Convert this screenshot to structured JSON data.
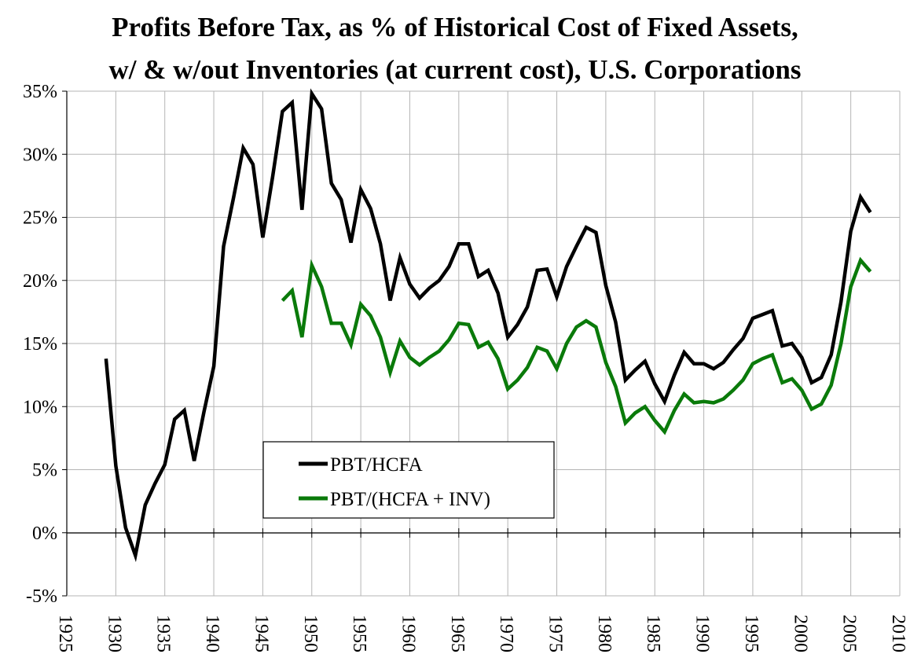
{
  "chart_data": {
    "type": "line",
    "title": "Profits Before Tax, as % of Historical Cost of Fixed Assets,",
    "subtitle": "w/ & w/out Inventories (at current cost), U.S. Corporations",
    "xlim": [
      1925,
      2010
    ],
    "ylim": [
      -5,
      35
    ],
    "x_ticks": [
      "1925",
      "1930",
      "1935",
      "1940",
      "1945",
      "1950",
      "1955",
      "1960",
      "1965",
      "1970",
      "1975",
      "1980",
      "1985",
      "1990",
      "1995",
      "2000",
      "2005",
      "2010"
    ],
    "y_ticks": [
      "-5%",
      "0%",
      "5%",
      "10%",
      "15%",
      "20%",
      "25%",
      "30%",
      "35%"
    ],
    "grid": true,
    "legend_position": "lower-center",
    "series": [
      {
        "name": "PBT/HCFA",
        "color": "#000000",
        "points": [
          [
            1929,
            13.8
          ],
          [
            1930,
            5.3
          ],
          [
            1931,
            0.4
          ],
          [
            1932,
            -1.8
          ],
          [
            1933,
            2.2
          ],
          [
            1934,
            3.9
          ],
          [
            1935,
            5.4
          ],
          [
            1936,
            9.0
          ],
          [
            1937,
            9.7
          ],
          [
            1938,
            5.7
          ],
          [
            1939,
            9.6
          ],
          [
            1940,
            13.2
          ],
          [
            1941,
            22.7
          ],
          [
            1942,
            26.5
          ],
          [
            1943,
            30.5
          ],
          [
            1944,
            29.2
          ],
          [
            1945,
            23.4
          ],
          [
            1946,
            28.2
          ],
          [
            1947,
            33.4
          ],
          [
            1948,
            34.1
          ],
          [
            1949,
            25.6
          ],
          [
            1950,
            34.8
          ],
          [
            1951,
            33.6
          ],
          [
            1952,
            27.7
          ],
          [
            1953,
            26.4
          ],
          [
            1954,
            23.0
          ],
          [
            1955,
            27.2
          ],
          [
            1956,
            25.7
          ],
          [
            1957,
            22.9
          ],
          [
            1958,
            18.4
          ],
          [
            1959,
            21.8
          ],
          [
            1960,
            19.7
          ],
          [
            1961,
            18.6
          ],
          [
            1962,
            19.4
          ],
          [
            1963,
            20.0
          ],
          [
            1964,
            21.1
          ],
          [
            1965,
            22.9
          ],
          [
            1966,
            22.9
          ],
          [
            1967,
            20.3
          ],
          [
            1968,
            20.8
          ],
          [
            1969,
            19.0
          ],
          [
            1970,
            15.5
          ],
          [
            1971,
            16.5
          ],
          [
            1972,
            17.9
          ],
          [
            1973,
            20.8
          ],
          [
            1974,
            20.9
          ],
          [
            1975,
            18.7
          ],
          [
            1976,
            21.1
          ],
          [
            1977,
            22.7
          ],
          [
            1978,
            24.2
          ],
          [
            1979,
            23.8
          ],
          [
            1980,
            19.6
          ],
          [
            1981,
            16.7
          ],
          [
            1982,
            12.1
          ],
          [
            1983,
            12.9
          ],
          [
            1984,
            13.6
          ],
          [
            1985,
            11.8
          ],
          [
            1986,
            10.4
          ],
          [
            1987,
            12.5
          ],
          [
            1988,
            14.3
          ],
          [
            1989,
            13.4
          ],
          [
            1990,
            13.4
          ],
          [
            1991,
            13.0
          ],
          [
            1992,
            13.5
          ],
          [
            1993,
            14.5
          ],
          [
            1994,
            15.4
          ],
          [
            1995,
            17.0
          ],
          [
            1996,
            17.3
          ],
          [
            1997,
            17.6
          ],
          [
            1998,
            14.8
          ],
          [
            1999,
            15.0
          ],
          [
            2000,
            13.9
          ],
          [
            2001,
            11.9
          ],
          [
            2002,
            12.3
          ],
          [
            2003,
            14.1
          ],
          [
            2004,
            18.3
          ],
          [
            2005,
            23.9
          ],
          [
            2006,
            26.6
          ],
          [
            2007,
            25.4
          ]
        ]
      },
      {
        "name": "PBT/(HCFA + INV)",
        "color": "#0a7a0a",
        "points": [
          [
            1947,
            18.4
          ],
          [
            1948,
            19.2
          ],
          [
            1949,
            15.5
          ],
          [
            1950,
            21.2
          ],
          [
            1951,
            19.5
          ],
          [
            1952,
            16.6
          ],
          [
            1953,
            16.6
          ],
          [
            1954,
            14.9
          ],
          [
            1955,
            18.1
          ],
          [
            1956,
            17.2
          ],
          [
            1957,
            15.5
          ],
          [
            1958,
            12.7
          ],
          [
            1959,
            15.2
          ],
          [
            1960,
            13.9
          ],
          [
            1961,
            13.3
          ],
          [
            1962,
            13.9
          ],
          [
            1963,
            14.4
          ],
          [
            1964,
            15.3
          ],
          [
            1965,
            16.6
          ],
          [
            1966,
            16.5
          ],
          [
            1967,
            14.7
          ],
          [
            1968,
            15.1
          ],
          [
            1969,
            13.8
          ],
          [
            1970,
            11.4
          ],
          [
            1971,
            12.1
          ],
          [
            1972,
            13.1
          ],
          [
            1973,
            14.7
          ],
          [
            1974,
            14.4
          ],
          [
            1975,
            13.0
          ],
          [
            1976,
            15.0
          ],
          [
            1977,
            16.3
          ],
          [
            1978,
            16.8
          ],
          [
            1979,
            16.3
          ],
          [
            1980,
            13.5
          ],
          [
            1981,
            11.6
          ],
          [
            1982,
            8.7
          ],
          [
            1983,
            9.5
          ],
          [
            1984,
            10.0
          ],
          [
            1985,
            8.9
          ],
          [
            1986,
            8.0
          ],
          [
            1987,
            9.7
          ],
          [
            1988,
            11.0
          ],
          [
            1989,
            10.3
          ],
          [
            1990,
            10.4
          ],
          [
            1991,
            10.3
          ],
          [
            1992,
            10.6
          ],
          [
            1993,
            11.3
          ],
          [
            1994,
            12.1
          ],
          [
            1995,
            13.4
          ],
          [
            1996,
            13.8
          ],
          [
            1997,
            14.1
          ],
          [
            1998,
            11.9
          ],
          [
            1999,
            12.2
          ],
          [
            2000,
            11.3
          ],
          [
            2001,
            9.8
          ],
          [
            2002,
            10.2
          ],
          [
            2003,
            11.7
          ],
          [
            2004,
            15.0
          ],
          [
            2005,
            19.5
          ],
          [
            2006,
            21.6
          ],
          [
            2007,
            20.7
          ]
        ]
      }
    ]
  }
}
